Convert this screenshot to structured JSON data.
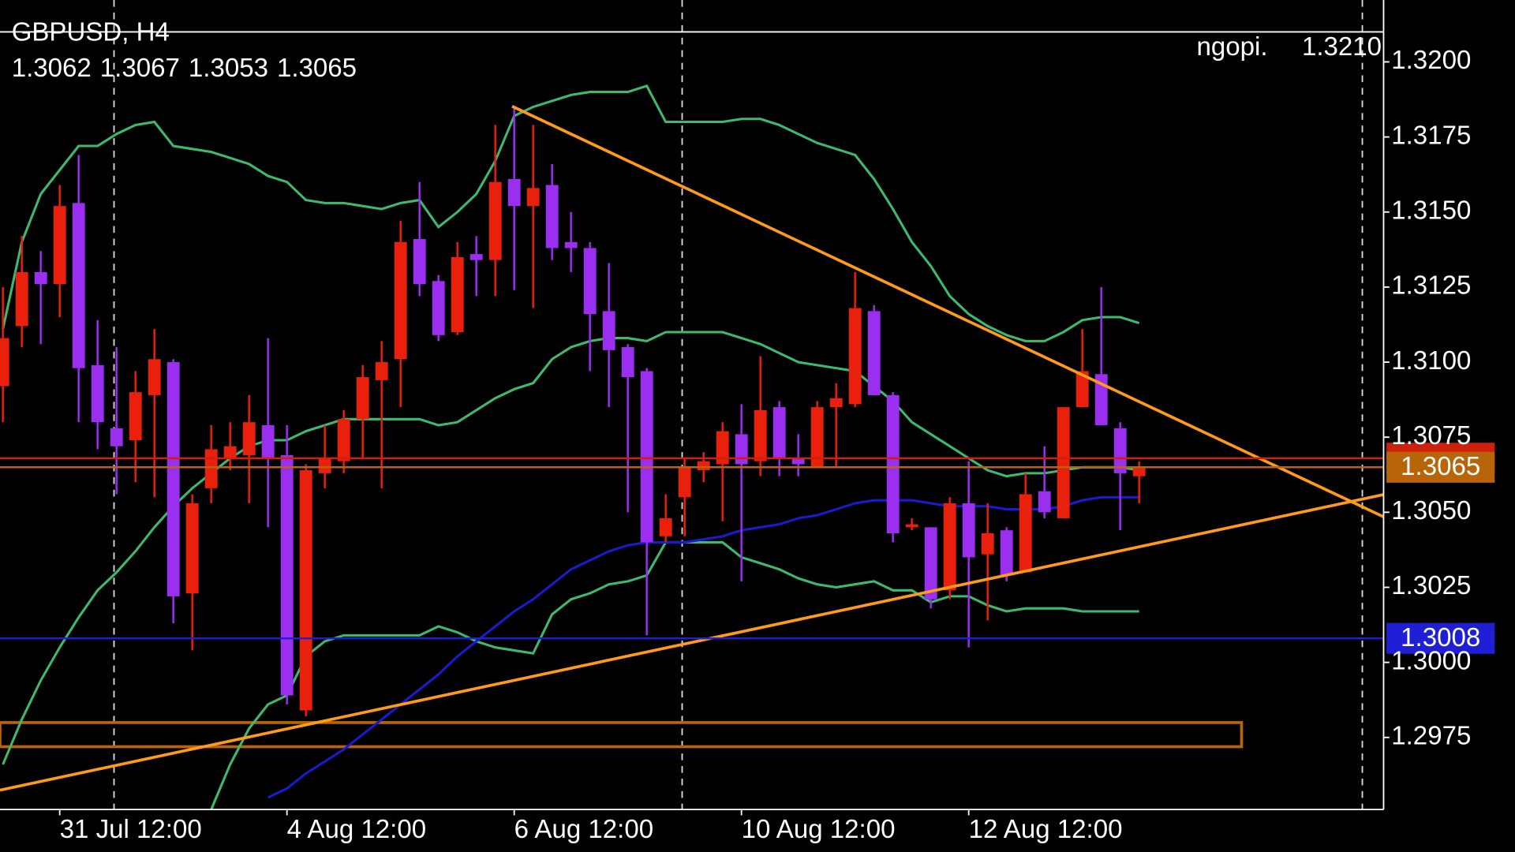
{
  "chart_data": {
    "type": "candlestick",
    "title": "GBPUSD, H4",
    "ohlc": [
      1.3062,
      1.3067,
      1.3053,
      1.3065
    ],
    "categories": [
      null,
      null,
      null,
      "31 Jul 12:00",
      null,
      null,
      null,
      null,
      null,
      null,
      null,
      null,
      null,
      null,
      null,
      "4 Aug 12:00",
      null,
      null,
      null,
      null,
      null,
      null,
      null,
      null,
      null,
      null,
      null,
      "6 Aug 12:00",
      null,
      null,
      null,
      null,
      null,
      null,
      null,
      null,
      null,
      null,
      null,
      "10 Aug 12:00",
      null,
      null,
      null,
      null,
      null,
      null,
      null,
      null,
      null,
      null,
      null,
      "12 Aug 12:00",
      null,
      null,
      null,
      null,
      null,
      null,
      null,
      null,
      null
    ],
    "candles": {
      "open": [
        1.3092,
        1.3112,
        1.313,
        1.3126,
        1.3153,
        1.3099,
        1.3078,
        1.3074,
        1.3089,
        1.31,
        1.3023,
        1.3058,
        1.3068,
        1.3069,
        1.3079,
        1.3069,
        1.2984,
        1.3063,
        1.3067,
        1.3081,
        1.3094,
        1.3101,
        1.3141,
        1.3127,
        1.311,
        1.3136,
        1.3134,
        1.3161,
        1.3152,
        1.3159,
        1.314,
        1.3138,
        1.3117,
        1.3105,
        1.3097,
        1.3042,
        1.3055,
        1.3064,
        1.3066,
        1.3076,
        1.3067,
        1.3085,
        1.3068,
        1.3065,
        1.3085,
        1.3086,
        1.3117,
        1.3089,
        1.3045,
        1.3045,
        1.3024,
        1.3053,
        1.3036,
        1.3044,
        1.303,
        1.3057,
        1.3048,
        1.3085,
        1.3096,
        1.3078,
        1.3062
      ],
      "high": [
        1.3125,
        1.3142,
        1.3137,
        1.3159,
        1.3169,
        1.3114,
        1.3105,
        1.3097,
        1.3111,
        1.3101,
        1.3056,
        1.3079,
        1.308,
        1.3089,
        1.3108,
        1.3079,
        1.3066,
        1.3079,
        1.3084,
        1.3099,
        1.3107,
        1.3147,
        1.316,
        1.3129,
        1.314,
        1.3142,
        1.3179,
        1.3185,
        1.3179,
        1.3166,
        1.315,
        1.314,
        1.3133,
        1.3106,
        1.3098,
        1.3056,
        1.3068,
        1.307,
        1.308,
        1.3086,
        1.3102,
        1.3087,
        1.3076,
        1.3087,
        1.3093,
        1.313,
        1.3119,
        1.309,
        1.3048,
        1.3045,
        1.3055,
        1.3067,
        1.3053,
        1.3045,
        1.3063,
        1.3072,
        1.3085,
        1.3111,
        1.3125,
        1.308,
        1.3067
      ],
      "low": [
        1.308,
        1.3105,
        1.3106,
        1.3115,
        1.308,
        1.3071,
        1.3056,
        1.306,
        1.3055,
        1.3013,
        1.3004,
        1.3053,
        1.3064,
        1.3053,
        1.3045,
        1.2986,
        1.2982,
        1.3058,
        1.3063,
        1.3068,
        1.3058,
        1.3085,
        1.3122,
        1.3107,
        1.3109,
        1.3122,
        1.3122,
        1.3124,
        1.3118,
        1.3134,
        1.313,
        1.3097,
        1.3085,
        1.305,
        1.3009,
        1.304,
        1.3042,
        1.306,
        1.3047,
        1.3027,
        1.3062,
        1.3062,
        1.3062,
        1.3065,
        1.3065,
        1.3085,
        1.3089,
        1.304,
        1.3044,
        1.3018,
        1.3021,
        1.3005,
        1.3014,
        1.3027,
        1.303,
        1.3048,
        1.3048,
        1.3085,
        1.3079,
        1.3044,
        1.3053
      ],
      "close": [
        1.3108,
        1.313,
        1.3126,
        1.3152,
        1.3098,
        1.308,
        1.3072,
        1.309,
        1.3101,
        1.3022,
        1.3053,
        1.3071,
        1.3072,
        1.308,
        1.3068,
        1.2989,
        1.3064,
        1.3068,
        1.3081,
        1.3095,
        1.31,
        1.314,
        1.3126,
        1.3109,
        1.3135,
        1.3134,
        1.316,
        1.3152,
        1.3158,
        1.3138,
        1.3138,
        1.3116,
        1.3104,
        1.3095,
        1.304,
        1.3048,
        1.3065,
        1.3067,
        1.3077,
        1.3066,
        1.3084,
        1.3068,
        1.3066,
        1.3085,
        1.3088,
        1.3118,
        1.3089,
        1.3043,
        1.3046,
        1.3021,
        1.3053,
        1.3035,
        1.3043,
        1.3029,
        1.3056,
        1.305,
        1.3085,
        1.3097,
        1.3079,
        1.3063,
        1.3065
      ],
      "bull_color": "#e8200c",
      "bear_color": "#9a2ff0"
    },
    "lines": [
      {
        "color": "#3dba6f",
        "values": [
          1.3111,
          1.314,
          1.3156,
          1.3164,
          1.3172,
          1.3172,
          1.3176,
          1.3179,
          1.318,
          1.3172,
          1.3171,
          1.317,
          1.3168,
          1.3166,
          1.3162,
          1.316,
          1.3154,
          1.3153,
          1.3153,
          1.3152,
          1.3151,
          1.3153,
          1.3154,
          1.3145,
          1.315,
          1.3156,
          1.3167,
          1.3182,
          1.3185,
          1.3187,
          1.3189,
          1.319,
          1.319,
          1.319,
          1.3192,
          1.318,
          1.318,
          1.318,
          1.318,
          1.3181,
          1.3181,
          1.3179,
          1.3176,
          1.3173,
          1.3171,
          1.3169,
          1.3161,
          1.3151,
          1.314,
          1.3132,
          1.3122,
          1.3116,
          1.3112,
          1.3109,
          1.3107,
          1.3107,
          1.311,
          1.3114,
          1.3115,
          1.3115,
          1.3113
        ]
      },
      {
        "color": "#3dba6f",
        "values": [
          1.2966,
          1.2981,
          1.2994,
          1.3005,
          1.3015,
          1.3024,
          1.303,
          1.3037,
          1.3045,
          1.3052,
          1.3058,
          1.3063,
          1.3068,
          1.3072,
          1.3074,
          1.3074,
          1.3077,
          1.3079,
          1.3081,
          1.3081,
          1.3081,
          1.3081,
          1.3081,
          1.3079,
          1.308,
          1.3084,
          1.3088,
          1.3091,
          1.3093,
          1.3101,
          1.3105,
          1.3107,
          1.3108,
          1.3108,
          1.3107,
          1.311,
          1.311,
          1.311,
          1.311,
          1.3108,
          1.3106,
          1.3103,
          1.31,
          1.3099,
          1.3098,
          1.3097,
          1.3092,
          1.3087,
          1.308,
          1.3076,
          1.3072,
          1.3068,
          1.3064,
          1.3062,
          1.3063,
          1.3063,
          1.3064,
          1.3065,
          1.3065,
          1.3065,
          1.3064
        ]
      },
      {
        "color": "#3dba6f",
        "values": [
          null,
          null,
          null,
          null,
          null,
          null,
          null,
          null,
          null,
          null,
          null,
          1.2951,
          1.2966,
          1.2978,
          1.2986,
          1.2989,
          1.3002,
          1.3007,
          1.3009,
          1.3009,
          1.3009,
          1.3009,
          1.3009,
          1.3012,
          1.301,
          1.3007,
          1.3005,
          1.3004,
          1.3003,
          1.3016,
          1.3021,
          1.3023,
          1.3026,
          1.3027,
          1.3029,
          1.304,
          1.304,
          1.304,
          1.304,
          1.3035,
          1.3033,
          1.3031,
          1.3028,
          1.3026,
          1.3025,
          1.3026,
          1.3027,
          1.3024,
          1.3024,
          1.302,
          1.3022,
          1.3022,
          1.3019,
          1.3017,
          1.3018,
          1.3018,
          1.3018,
          1.3017,
          1.3017,
          1.3017,
          1.3017
        ]
      },
      {
        "color": "#1a1ad0",
        "values": [
          null,
          null,
          null,
          null,
          null,
          null,
          null,
          null,
          null,
          null,
          null,
          null,
          null,
          null,
          1.2955,
          1.2958,
          1.2963,
          1.2967,
          1.2971,
          1.2976,
          1.2981,
          1.2986,
          1.2991,
          1.2996,
          1.3002,
          1.3007,
          1.3012,
          1.3017,
          1.3021,
          1.3026,
          1.3031,
          1.3034,
          1.3037,
          1.3039,
          1.304,
          1.304,
          1.304,
          1.3041,
          1.3042,
          1.3044,
          1.3045,
          1.3046,
          1.3048,
          1.3049,
          1.3051,
          1.3053,
          1.3054,
          1.3054,
          1.3054,
          1.3053,
          1.3052,
          1.3052,
          1.3052,
          1.3051,
          1.3051,
          1.3051,
          1.3052,
          1.3054,
          1.3055,
          1.3055,
          1.3055
        ]
      }
    ],
    "levels": [
      {
        "value": 1.3068,
        "color": "#d0200c"
      },
      {
        "value": 1.3065,
        "label": "1.3065",
        "color": "#b8650a"
      },
      {
        "value": 1.3008,
        "label": "1.3008",
        "color": "#1f1fd6"
      }
    ],
    "marker_line": {
      "name": "ngopi.",
      "value": 1.321,
      "label": "1.3210",
      "color": "#ffffff"
    },
    "ylim": [
      1.2951,
      1.321
    ],
    "yticks": [
      {
        "value": 1.32,
        "label": "1.3200"
      },
      1.3175,
      {
        "value": 1.315,
        "label": "1.3150"
      },
      1.3125,
      {
        "value": 1.31,
        "label": "1.3100"
      },
      1.3075,
      {
        "value": 1.305,
        "label": "1.3050"
      },
      1.3025,
      {
        "value": 1.3,
        "label": "1.3000"
      },
      1.2975
    ]
  }
}
